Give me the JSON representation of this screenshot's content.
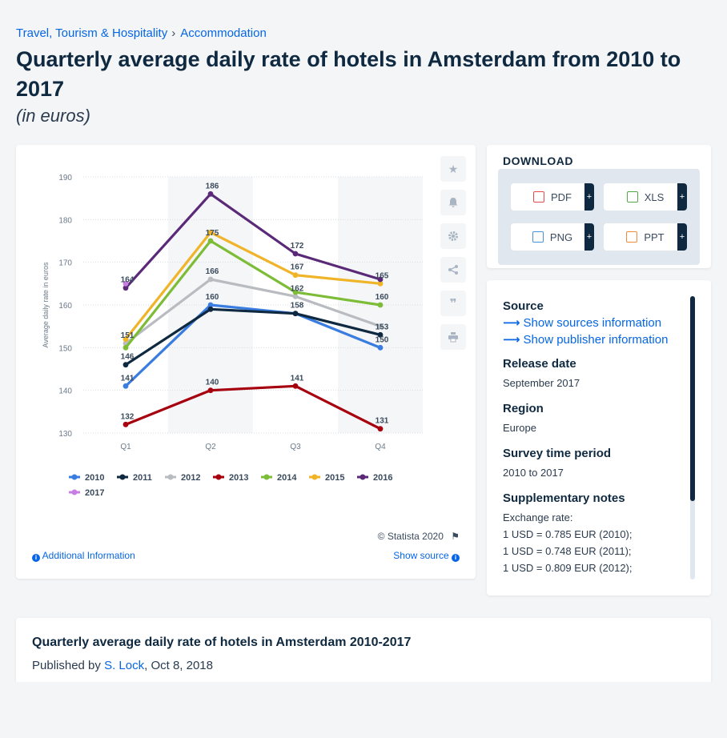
{
  "breadcrumb": {
    "item1": "Travel, Tourism & Hospitality",
    "sep": "›",
    "item2": "Accommodation"
  },
  "title": "Quarterly average daily rate of hotels in Amsterdam from 2010 to 2017",
  "subtitle": "(in euros)",
  "chart_footer": {
    "copyright": "© Statista 2020",
    "additional_info": "Additional Information",
    "show_source": "Show source"
  },
  "download": {
    "title": "DOWNLOAD",
    "buttons": [
      {
        "label": "PDF",
        "plus": "+",
        "color": "#e34a4a"
      },
      {
        "label": "XLS",
        "plus": "+",
        "color": "#53a548"
      },
      {
        "label": "PNG",
        "plus": "+",
        "color": "#4a90d9"
      },
      {
        "label": "PPT",
        "plus": "+",
        "color": "#f08c3a"
      }
    ]
  },
  "info": {
    "source_label": "Source",
    "show_sources": "Show sources information",
    "show_publisher": "Show publisher information",
    "release_label": "Release date",
    "release_value": "September 2017",
    "region_label": "Region",
    "region_value": "Europe",
    "survey_label": "Survey time period",
    "survey_value": "2010 to 2017",
    "notes_label": "Supplementary notes",
    "notes_lines": [
      "Exchange rate:",
      "1 USD = 0.785 EUR (2010);",
      "1 USD = 0.748 EUR (2011);",
      "1 USD = 0.809 EUR (2012);"
    ]
  },
  "bottom": {
    "title": "Quarterly average daily rate of hotels in Amsterdam 2010-2017",
    "published_prefix": "Published by",
    "author": "S. Lock",
    "date": ", Oct 8, 2018"
  },
  "chart_data": {
    "type": "line",
    "title": "",
    "xlabel": "",
    "ylabel": "Average daily rate in euros",
    "categories": [
      "Q1",
      "Q2",
      "Q3",
      "Q4"
    ],
    "ylim": [
      130,
      190
    ],
    "yticks": [
      130,
      140,
      150,
      160,
      170,
      180,
      190
    ],
    "grid": true,
    "legend_position": "bottom",
    "series": [
      {
        "name": "2010",
        "color": "#3a7de0",
        "values": [
          141,
          160,
          158,
          150
        ]
      },
      {
        "name": "2011",
        "color": "#0f2940",
        "values": [
          146,
          159,
          158,
          153
        ]
      },
      {
        "name": "2012",
        "color": "#b8bcc1",
        "values": [
          151,
          166,
          162,
          155
        ]
      },
      {
        "name": "2013",
        "color": "#a6000f",
        "values": [
          132,
          140,
          141,
          131
        ]
      },
      {
        "name": "2014",
        "color": "#7cbc36",
        "values": [
          150,
          175,
          163,
          160
        ]
      },
      {
        "name": "2015",
        "color": "#f0b429",
        "values": [
          152,
          177,
          167,
          165
        ]
      },
      {
        "name": "2016",
        "color": "#5a2a78",
        "values": [
          164,
          186,
          172,
          166
        ]
      },
      {
        "name": "2017",
        "color": "#c77ee0",
        "values": [
          165,
          null,
          null,
          null
        ]
      }
    ],
    "data_labels": [
      {
        "text": "164",
        "x": "Q1",
        "y": 164
      },
      {
        "text": "151",
        "x": "Q1",
        "y": 151
      },
      {
        "text": "146",
        "x": "Q1",
        "y": 146
      },
      {
        "text": "141",
        "x": "Q1",
        "y": 141
      },
      {
        "text": "132",
        "x": "Q1",
        "y": 132
      },
      {
        "text": "186",
        "x": "Q2",
        "y": 186
      },
      {
        "text": "175",
        "x": "Q2",
        "y": 175
      },
      {
        "text": "166",
        "x": "Q2",
        "y": 166
      },
      {
        "text": "160",
        "x": "Q2",
        "y": 160
      },
      {
        "text": "140",
        "x": "Q2",
        "y": 140
      },
      {
        "text": "172",
        "x": "Q3",
        "y": 172
      },
      {
        "text": "167",
        "x": "Q3",
        "y": 167
      },
      {
        "text": "162",
        "x": "Q3",
        "y": 162
      },
      {
        "text": "158",
        "x": "Q3",
        "y": 158
      },
      {
        "text": "141",
        "x": "Q3",
        "y": 141
      },
      {
        "text": "165",
        "x": "Q4",
        "y": 165
      },
      {
        "text": "160",
        "x": "Q4",
        "y": 160
      },
      {
        "text": "153",
        "x": "Q4",
        "y": 153
      },
      {
        "text": "150",
        "x": "Q4",
        "y": 150
      },
      {
        "text": "131",
        "x": "Q4",
        "y": 131
      }
    ]
  }
}
